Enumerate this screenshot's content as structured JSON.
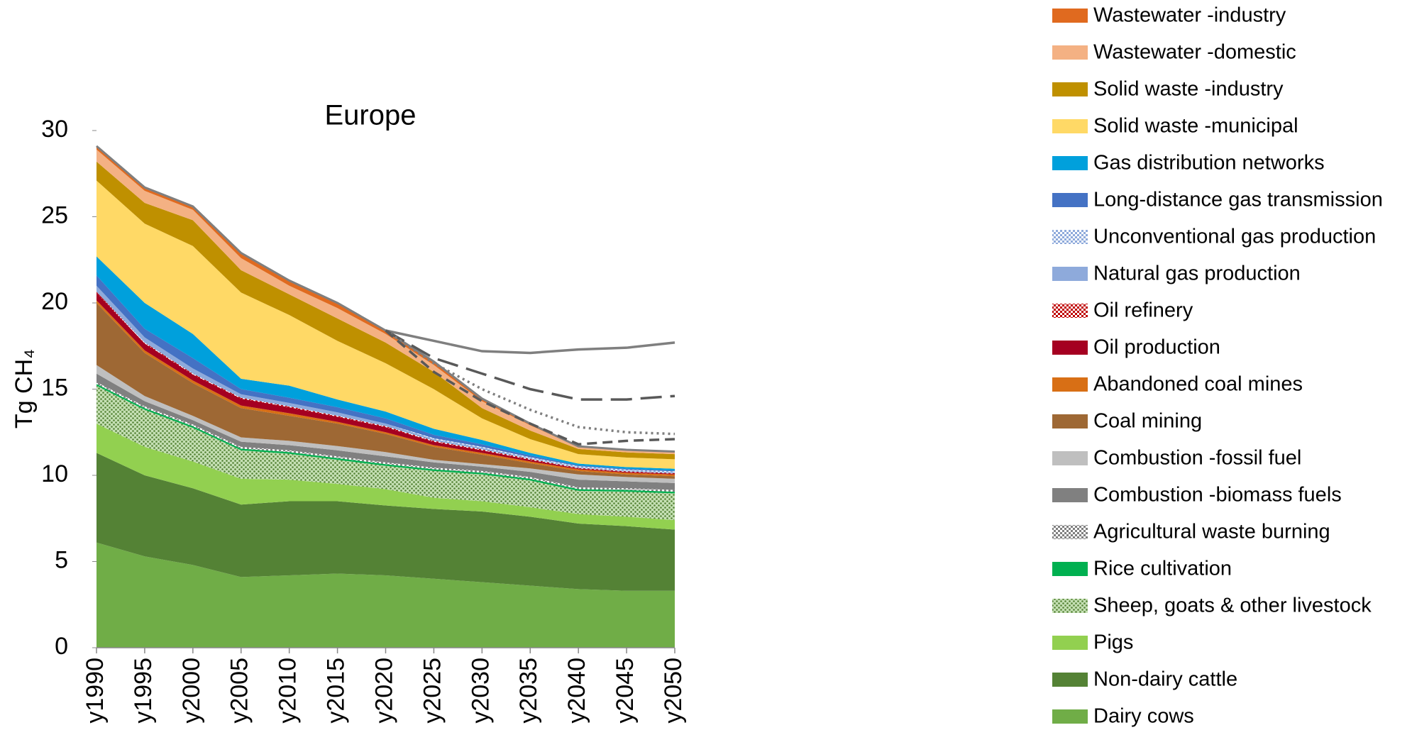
{
  "chart_data": {
    "type": "stacked_area",
    "title": "Europe",
    "y_label": "Tg CH₄",
    "categories": [
      "y1990",
      "y1995",
      "y2000",
      "y2005",
      "y2010",
      "y2015",
      "y2020",
      "y2025",
      "y2030",
      "y2035",
      "y2040",
      "y2045",
      "y2050"
    ],
    "ylim": [
      0,
      30
    ],
    "yticks": [
      0,
      5,
      10,
      15,
      20,
      25,
      30
    ],
    "grid": false,
    "legend": "right",
    "series": [
      {
        "name": "Dairy cows",
        "color": "#70ad47",
        "values": [
          6.1,
          5.3,
          4.8,
          4.1,
          4.2,
          4.3,
          4.2,
          4.0,
          3.8,
          3.6,
          3.4,
          3.3,
          3.3
        ]
      },
      {
        "name": "Non-dairy cattle",
        "color": "#548235",
        "values": [
          5.2,
          4.7,
          4.45,
          4.2,
          4.3,
          4.2,
          4.05,
          4.05,
          4.1,
          4.0,
          3.8,
          3.75,
          3.55
        ]
      },
      {
        "name": "Pigs",
        "color": "#92d050",
        "values": [
          1.7,
          1.65,
          1.55,
          1.5,
          1.25,
          1.0,
          0.95,
          0.65,
          0.6,
          0.55,
          0.55,
          0.55,
          0.55
        ]
      },
      {
        "name": "Sheep, goats & other livestock",
        "color": "#548235",
        "pattern": "dots",
        "values": [
          2.2,
          2.15,
          1.95,
          1.65,
          1.5,
          1.4,
          1.35,
          1.55,
          1.55,
          1.55,
          1.35,
          1.45,
          1.55
        ]
      },
      {
        "name": "Rice cultivation",
        "color": "#00b050",
        "values": [
          0.1,
          0.1,
          0.1,
          0.1,
          0.1,
          0.1,
          0.1,
          0.1,
          0.1,
          0.1,
          0.1,
          0.1,
          0.1
        ]
      },
      {
        "name": "Agricultural waste burning",
        "color": "#7f7f7f",
        "pattern": "crosshatch",
        "values": [
          0.1,
          0.1,
          0.1,
          0.1,
          0.1,
          0.1,
          0.1,
          0.1,
          0.1,
          0.1,
          0.1,
          0.1,
          0.1
        ]
      },
      {
        "name": "Combustion -biomass fuels",
        "color": "#808080",
        "values": [
          0.5,
          0.3,
          0.25,
          0.3,
          0.3,
          0.35,
          0.35,
          0.3,
          0.25,
          0.3,
          0.45,
          0.4,
          0.4
        ]
      },
      {
        "name": "Combustion -fossil fuel",
        "color": "#bfbfbf",
        "values": [
          0.5,
          0.3,
          0.25,
          0.25,
          0.25,
          0.25,
          0.25,
          0.15,
          0.15,
          0.2,
          0.3,
          0.25,
          0.25
        ]
      },
      {
        "name": "Coal mining",
        "color": "#9e6834",
        "values": [
          3.6,
          2.5,
          1.9,
          1.7,
          1.45,
          1.3,
          1.05,
          0.75,
          0.55,
          0.3,
          0.2,
          0.15,
          0.15
        ]
      },
      {
        "name": "Abandoned coal mines",
        "color": "#d86f15",
        "values": [
          0.15,
          0.15,
          0.15,
          0.15,
          0.15,
          0.1,
          0.1,
          0.1,
          0.1,
          0.1,
          0.1,
          0.1,
          0.1
        ]
      },
      {
        "name": "Oil production",
        "color": "#a50021",
        "values": [
          0.45,
          0.4,
          0.35,
          0.4,
          0.35,
          0.3,
          0.3,
          0.2,
          0.15,
          0.1,
          0.05,
          0.05,
          0.05
        ]
      },
      {
        "name": "Oil refinery",
        "color": "#c00000",
        "pattern": "crosshatch",
        "values": [
          0.05,
          0.05,
          0.05,
          0.05,
          0.05,
          0.05,
          0.05,
          0.05,
          0.05,
          0.05,
          0.03,
          0.03,
          0.03
        ]
      },
      {
        "name": "Natural gas production",
        "color": "#8eaadb",
        "values": [
          0.35,
          0.3,
          0.3,
          0.2,
          0.2,
          0.2,
          0.15,
          0.1,
          0.1,
          0.05,
          0.05,
          0.05,
          0.05
        ]
      },
      {
        "name": "Unconventional gas production",
        "color": "#8eaadb",
        "pattern": "crosshatch",
        "values": [
          0,
          0,
          0,
          0,
          0,
          0,
          0,
          0.05,
          0.05,
          0.05,
          0.05,
          0.05,
          0.05
        ]
      },
      {
        "name": "Long-distance gas transmission",
        "color": "#4472c4",
        "values": [
          0.6,
          0.5,
          0.6,
          0.3,
          0.3,
          0.3,
          0.3,
          0.2,
          0.15,
          0.1,
          0.05,
          0.05,
          0.05
        ]
      },
      {
        "name": "Gas distribution networks",
        "color": "#00a0dc",
        "values": [
          1.1,
          1.5,
          1.4,
          0.6,
          0.7,
          0.45,
          0.4,
          0.35,
          0.25,
          0.15,
          0.1,
          0.1,
          0.1
        ]
      },
      {
        "name": "Solid waste -municipal",
        "color": "#ffd966",
        "values": [
          4.4,
          4.6,
          5.1,
          5.0,
          4.1,
          3.4,
          2.8,
          2.3,
          1.25,
          0.8,
          0.55,
          0.55,
          0.55
        ]
      },
      {
        "name": "Solid waste -industry",
        "color": "#bf9000",
        "values": [
          1.1,
          1.2,
          1.5,
          1.3,
          1.2,
          1.3,
          1.2,
          1.0,
          0.6,
          0.5,
          0.3,
          0.3,
          0.3
        ]
      },
      {
        "name": "Wastewater -domestic",
        "color": "#f4b183",
        "values": [
          0.7,
          0.7,
          0.6,
          0.7,
          0.5,
          0.6,
          0.5,
          0.4,
          0.4,
          0.3,
          0.1,
          0.1,
          0.1
        ]
      },
      {
        "name": "Wastewater -industry",
        "color": "#e06a1f",
        "values": [
          0.2,
          0.2,
          0.2,
          0.3,
          0.3,
          0.3,
          0.2,
          0.2,
          0.15,
          0.1,
          0.05,
          0.05,
          0.05
        ]
      }
    ],
    "lines": [
      {
        "color": "#7f7f7f",
        "style": "solid",
        "values": [
          null,
          null,
          null,
          null,
          null,
          null,
          18.4,
          17.8,
          17.2,
          17.1,
          17.3,
          17.4,
          17.7
        ]
      },
      {
        "color": "#595959",
        "style": "longdash",
        "values": [
          null,
          null,
          null,
          null,
          null,
          null,
          18.4,
          16.8,
          15.9,
          15.0,
          14.4,
          14.4,
          14.6
        ]
      },
      {
        "color": "#7f7f7f",
        "style": "dotted",
        "values": [
          null,
          null,
          null,
          null,
          null,
          null,
          18.4,
          16.5,
          15.0,
          13.8,
          12.8,
          12.5,
          12.4
        ]
      },
      {
        "color": "#595959",
        "style": "dash",
        "values": [
          null,
          null,
          null,
          null,
          null,
          null,
          18.4,
          16.0,
          14.3,
          13.0,
          11.8,
          12.0,
          12.1
        ]
      }
    ]
  }
}
